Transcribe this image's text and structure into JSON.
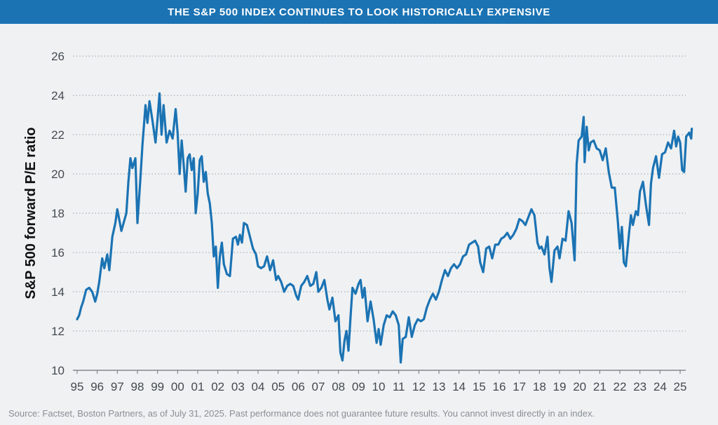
{
  "header": {
    "title": "THE S&P 500 INDEX CONTINUES TO LOOK HISTORICALLY EXPENSIVE"
  },
  "footer": {
    "source": "Source: Factset, Boston Partners, as of July 31, 2025. Past performance does not guarantee future results. You cannot invest directly in an index."
  },
  "colors": {
    "line": "#1b73b3",
    "banner": "#1b73b3",
    "background": "#eff1f3",
    "grid": "#9aa0a6"
  },
  "chart_data": {
    "type": "line",
    "title": "THE S&P 500 INDEX CONTINUES TO LOOK HISTORICALLY EXPENSIVE",
    "xlabel": "",
    "ylabel": "S&P 500 forward P/E ratio",
    "xlim": [
      1995.0,
      2025.0
    ],
    "ylim": [
      10,
      26
    ],
    "x_ticks": [
      1995,
      1996,
      1997,
      1998,
      1999,
      2000,
      2001,
      2002,
      2003,
      2004,
      2005,
      2006,
      2007,
      2008,
      2009,
      2010,
      2011,
      2012,
      2013,
      2014,
      2015,
      2016,
      2017,
      2018,
      2019,
      2020,
      2021,
      2022,
      2023,
      2024,
      2025
    ],
    "x_tick_labels": [
      "95",
      "96",
      "97",
      "98",
      "99",
      "00",
      "01",
      "02",
      "03",
      "04",
      "05",
      "06",
      "07",
      "08",
      "09",
      "10",
      "11",
      "12",
      "13",
      "14",
      "15",
      "16",
      "17",
      "18",
      "19",
      "20",
      "21",
      "22",
      "23",
      "24",
      "25"
    ],
    "y_ticks": [
      10,
      12,
      14,
      16,
      18,
      20,
      22,
      24,
      26
    ],
    "grid": "horizontal dotted",
    "legend": "none",
    "series": [
      {
        "x": [
          1995.0,
          1995.1,
          1995.2,
          1995.3,
          1995.45,
          1995.6,
          1995.75,
          1995.9,
          1996.0,
          1996.1,
          1996.25,
          1996.35,
          1996.5,
          1996.6,
          1996.75,
          1996.9,
          1997.0,
          1997.2,
          1997.45,
          1997.55,
          1997.65,
          1997.75,
          1997.9,
          1998.0,
          1998.15,
          1998.25,
          1998.4,
          1998.5,
          1998.6,
          1998.75,
          1998.9,
          1999.0,
          1999.1,
          1999.2,
          1999.3,
          1999.45,
          1999.6,
          1999.75,
          1999.9,
          2000.0,
          2000.1,
          2000.2,
          2000.3,
          2000.4,
          2000.5,
          2000.6,
          2000.7,
          2000.8,
          2000.9,
          2001.0,
          2001.1,
          2001.2,
          2001.3,
          2001.4,
          2001.5,
          2001.6,
          2001.7,
          2001.8,
          2001.9,
          2002.0,
          2002.1,
          2002.2,
          2002.3,
          2002.45,
          2002.6,
          2002.75,
          2002.9,
          2003.0,
          2003.1,
          2003.2,
          2003.3,
          2003.45,
          2003.6,
          2003.75,
          2003.9,
          2004.0,
          2004.15,
          2004.3,
          2004.45,
          2004.6,
          2004.75,
          2004.9,
          2005.0,
          2005.15,
          2005.3,
          2005.45,
          2005.6,
          2005.75,
          2005.9,
          2006.0,
          2006.15,
          2006.3,
          2006.45,
          2006.6,
          2006.75,
          2006.9,
          2007.0,
          2007.15,
          2007.3,
          2007.45,
          2007.55,
          2007.7,
          2007.85,
          2008.0,
          2008.1,
          2008.2,
          2008.3,
          2008.4,
          2008.5,
          2008.6,
          2008.7,
          2008.85,
          2009.0,
          2009.1,
          2009.2,
          2009.3,
          2009.45,
          2009.6,
          2009.75,
          2009.9,
          2010.0,
          2010.1,
          2010.25,
          2010.4,
          2010.55,
          2010.7,
          2010.85,
          2011.0,
          2011.1,
          2011.2,
          2011.35,
          2011.5,
          2011.65,
          2011.8,
          2011.95,
          2012.1,
          2012.25,
          2012.4,
          2012.55,
          2012.7,
          2012.85,
          2013.0,
          2013.15,
          2013.3,
          2013.45,
          2013.6,
          2013.75,
          2013.9,
          2014.05,
          2014.2,
          2014.35,
          2014.5,
          2014.65,
          2014.8,
          2014.95,
          2015.05,
          2015.2,
          2015.35,
          2015.5,
          2015.65,
          2015.8,
          2015.95,
          2016.1,
          2016.25,
          2016.4,
          2016.55,
          2016.7,
          2016.85,
          2017.0,
          2017.15,
          2017.3,
          2017.45,
          2017.6,
          2017.75,
          2017.9,
          2018.0,
          2018.1,
          2018.25,
          2018.4,
          2018.5,
          2018.6,
          2018.75,
          2018.9,
          2019.0,
          2019.15,
          2019.3,
          2019.45,
          2019.6,
          2019.75,
          2019.85,
          2019.95,
          2020.1,
          2020.2,
          2020.25,
          2020.35,
          2020.45,
          2020.55,
          2020.7,
          2020.85,
          2021.0,
          2021.15,
          2021.3,
          2021.45,
          2021.6,
          2021.75,
          2021.9,
          2022.0,
          2022.1,
          2022.2,
          2022.3,
          2022.45,
          2022.55,
          2022.65,
          2022.8,
          2022.9,
          2023.0,
          2023.15,
          2023.3,
          2023.45,
          2023.55,
          2023.65,
          2023.8,
          2023.95,
          2024.1,
          2024.25,
          2024.4,
          2024.55,
          2024.7,
          2024.8,
          2024.9,
          2025.0,
          2025.1,
          2025.2,
          2025.3,
          2025.45,
          2025.55,
          2025.58
        ],
        "values": [
          12.6,
          12.8,
          13.2,
          13.5,
          14.1,
          14.2,
          14.0,
          13.5,
          13.9,
          14.5,
          15.7,
          15.2,
          15.9,
          15.1,
          16.8,
          17.5,
          18.2,
          17.1,
          18.0,
          19.6,
          20.8,
          20.3,
          20.8,
          17.5,
          19.8,
          21.5,
          23.5,
          22.6,
          23.7,
          22.7,
          21.6,
          22.8,
          24.1,
          22.0,
          23.5,
          21.6,
          22.2,
          21.8,
          23.3,
          22.1,
          20.0,
          21.7,
          20.5,
          19.1,
          20.8,
          21.0,
          20.2,
          20.8,
          18.0,
          19.0,
          20.7,
          20.9,
          19.6,
          20.1,
          19.0,
          18.5,
          17.5,
          15.8,
          16.3,
          14.2,
          15.8,
          16.5,
          15.4,
          14.9,
          14.8,
          16.7,
          16.8,
          16.4,
          16.9,
          16.5,
          17.5,
          17.4,
          16.8,
          16.2,
          15.9,
          15.3,
          15.2,
          15.3,
          15.8,
          15.1,
          15.6,
          14.6,
          14.8,
          14.5,
          14.0,
          14.3,
          14.4,
          14.3,
          13.8,
          13.6,
          14.3,
          14.5,
          14.8,
          14.3,
          14.4,
          15.0,
          14.0,
          14.2,
          14.6,
          13.6,
          13.1,
          13.7,
          12.5,
          12.8,
          10.9,
          10.5,
          11.5,
          12.0,
          11.0,
          12.7,
          14.2,
          13.9,
          14.4,
          14.6,
          13.7,
          14.2,
          12.5,
          13.5,
          12.6,
          11.4,
          12.1,
          11.3,
          12.3,
          12.8,
          12.7,
          13.0,
          12.8,
          12.3,
          10.4,
          11.6,
          11.7,
          12.7,
          11.7,
          12.3,
          12.6,
          12.5,
          12.6,
          13.2,
          13.6,
          13.9,
          13.6,
          14.0,
          14.6,
          15.1,
          14.8,
          15.2,
          15.4,
          15.2,
          15.4,
          15.8,
          15.9,
          16.4,
          16.5,
          16.6,
          16.3,
          15.5,
          15.0,
          16.2,
          16.3,
          15.7,
          16.4,
          16.4,
          16.7,
          16.8,
          17.0,
          16.7,
          16.9,
          17.2,
          17.7,
          17.6,
          17.4,
          17.8,
          18.2,
          17.9,
          16.5,
          16.2,
          16.3,
          15.9,
          16.8,
          15.2,
          14.5,
          16.1,
          16.3,
          15.7,
          16.7,
          16.6,
          18.1,
          17.5,
          15.6,
          20.5,
          21.7,
          21.9,
          22.9,
          20.6,
          22.4,
          21.2,
          21.6,
          21.7,
          21.3,
          21.2,
          20.7,
          21.3,
          20.1,
          19.3,
          19.3,
          17.6,
          16.2,
          17.3,
          15.5,
          15.3,
          16.9,
          17.9,
          17.4,
          18.1,
          17.9,
          19.1,
          19.6,
          18.4,
          17.4,
          19.5,
          20.3,
          20.9,
          19.8,
          21.0,
          21.1,
          21.6,
          21.3,
          22.2,
          21.4,
          21.9,
          21.6,
          20.2,
          20.1,
          21.9,
          22.1,
          21.8,
          22.3
        ]
      }
    ]
  }
}
